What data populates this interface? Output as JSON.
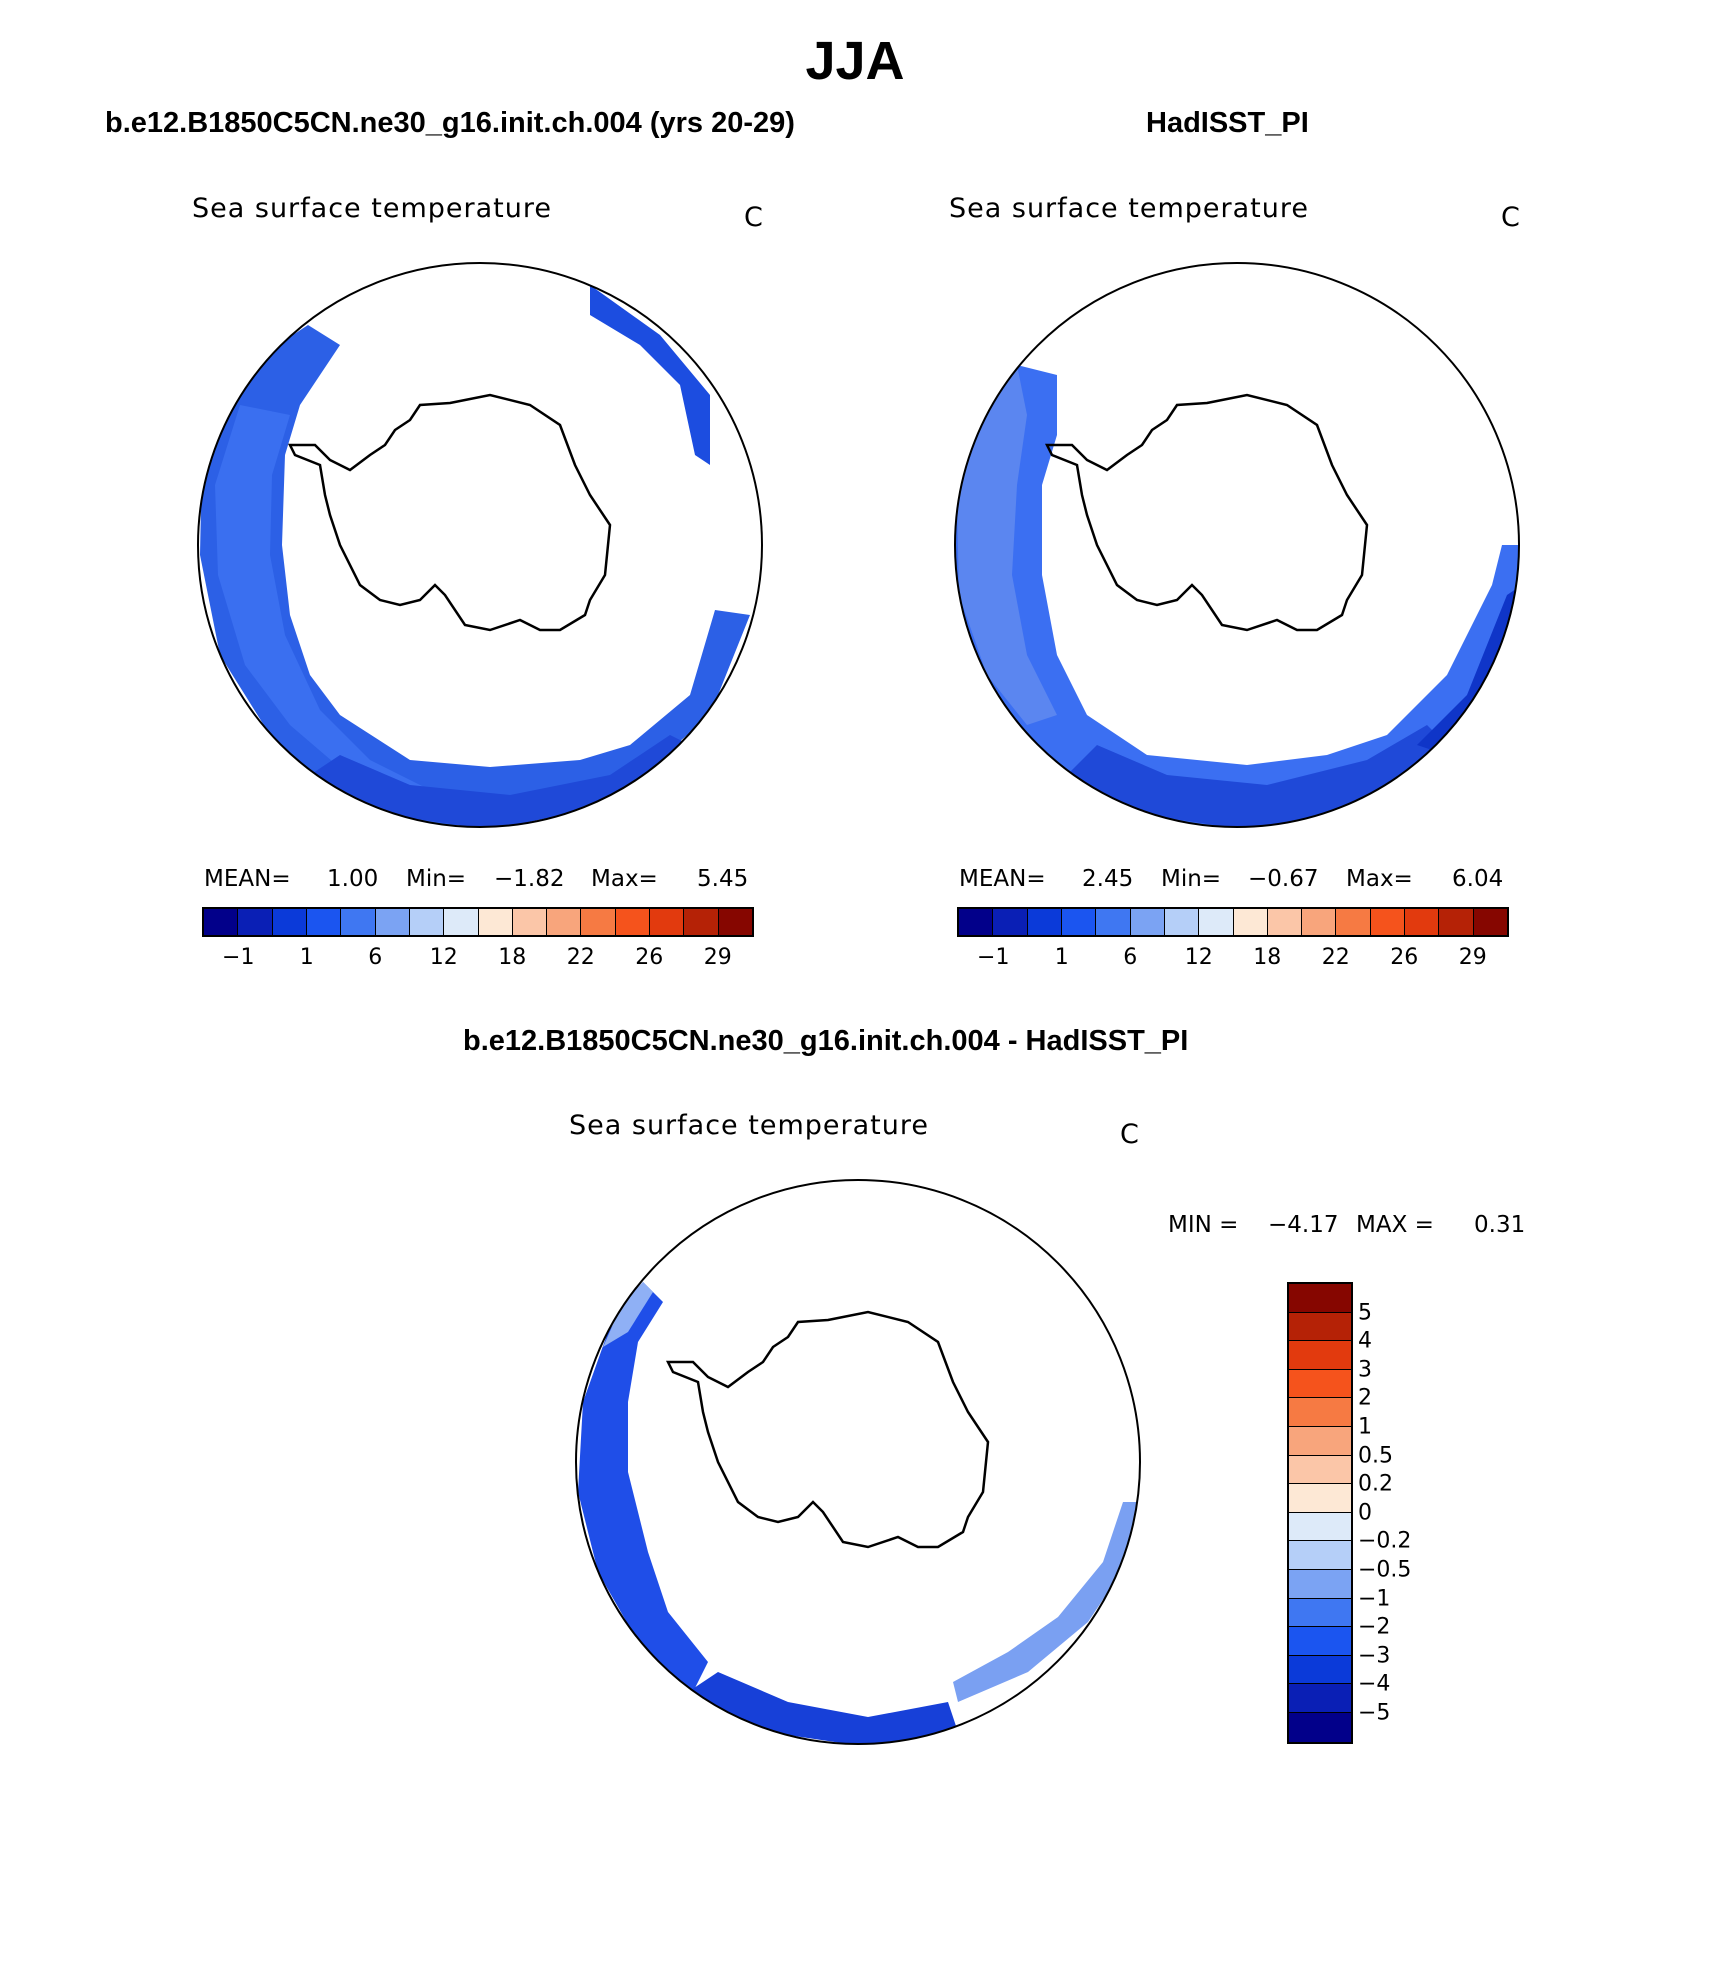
{
  "page_title": "JJA",
  "panels": [
    {
      "title": "b.e12.B1850C5CN.ne30_g16.init.ch.004 (yrs 20-29)",
      "variable": "Sea surface temperature",
      "units": "C",
      "stats": {
        "mean_label": "MEAN=",
        "mean": "1.00",
        "min_label": "Min=",
        "min": "−1.82",
        "max_label": "Max=",
        "max": "5.45"
      }
    },
    {
      "title": "HadISST_PI",
      "variable": "Sea surface temperature",
      "units": "C",
      "stats": {
        "mean_label": "MEAN=",
        "mean": "2.45",
        "min_label": "Min=",
        "min": "−0.67",
        "max_label": "Max=",
        "max": "6.04"
      }
    }
  ],
  "diff_panel": {
    "title": "b.e12.B1850C5CN.ne30_g16.init.ch.004 - HadISST_PI",
    "variable": "Sea surface temperature",
    "units": "C",
    "stats": {
      "min_label": "MIN =",
      "min": "−4.17",
      "max_label": "MAX =",
      "max": "0.31"
    }
  },
  "chart_data": [
    {
      "type": "heatmap",
      "projection": "south-polar-stereographic",
      "title": "b.e12.B1850C5CN.ne30_g16.init.ch.004 (yrs 20-29)",
      "variable": "Sea surface temperature",
      "units": "C",
      "mean": 1.0,
      "min": -1.82,
      "max": 5.45,
      "colorbar": {
        "orientation": "horizontal",
        "tick_labels": [
          "−1",
          "1",
          "6",
          "12",
          "18",
          "22",
          "26",
          "29"
        ],
        "colors": [
          "#02008a",
          "#0a1fb5",
          "#0b3ad9",
          "#1b55f0",
          "#3f77f2",
          "#7ba3f3",
          "#b5cff8",
          "#ddeaf9",
          "#fde8d5",
          "#fbc6a8",
          "#f8a57c",
          "#f67a43",
          "#f5531c",
          "#e23a0e",
          "#b52206",
          "#860600"
        ]
      }
    },
    {
      "type": "heatmap",
      "projection": "south-polar-stereographic",
      "title": "HadISST_PI",
      "variable": "Sea surface temperature",
      "units": "C",
      "mean": 2.45,
      "min": -0.67,
      "max": 6.04,
      "colorbar": {
        "orientation": "horizontal",
        "tick_labels": [
          "−1",
          "1",
          "6",
          "12",
          "18",
          "22",
          "26",
          "29"
        ],
        "colors": [
          "#02008a",
          "#0a1fb5",
          "#0b3ad9",
          "#1b55f0",
          "#3f77f2",
          "#7ba3f3",
          "#b5cff8",
          "#ddeaf9",
          "#fde8d5",
          "#fbc6a8",
          "#f8a57c",
          "#f67a43",
          "#f5531c",
          "#e23a0e",
          "#b52206",
          "#860600"
        ]
      }
    },
    {
      "type": "heatmap",
      "projection": "south-polar-stereographic",
      "title": "b.e12.B1850C5CN.ne30_g16.init.ch.004 - HadISST_PI",
      "variable": "Sea surface temperature",
      "units": "C",
      "min": -4.17,
      "max": 0.31,
      "colorbar": {
        "orientation": "vertical",
        "tick_labels": [
          "5",
          "4",
          "3",
          "2",
          "1",
          "0.5",
          "0.2",
          "0",
          "−0.2",
          "−0.5",
          "−1",
          "−2",
          "−3",
          "−4",
          "−5"
        ],
        "colors": [
          "#860600",
          "#b52206",
          "#e23a0e",
          "#f5531c",
          "#f67a43",
          "#f8a57c",
          "#fbc6a8",
          "#fde8d5",
          "#ddeaf9",
          "#b5cff8",
          "#7ba3f3",
          "#3f77f2",
          "#1b55f0",
          "#0b3ad9",
          "#0a1fb5",
          "#02008a"
        ]
      }
    }
  ]
}
